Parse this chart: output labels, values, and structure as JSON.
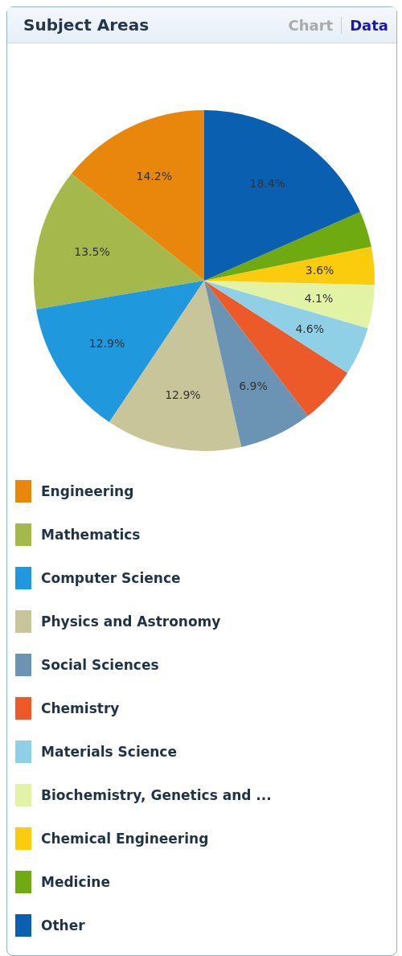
{
  "chart_data": {
    "type": "pie",
    "title": "Subject Areas",
    "annotations": [
      "Chart",
      "Data"
    ],
    "categories": [
      "Engineering",
      "Mathematics",
      "Computer Science",
      "Physics and Astronomy",
      "Social Sciences",
      "Chemistry",
      "Materials Science",
      "Biochemistry, Genetics and ...",
      "Chemical Engineering",
      "Medicine",
      "Other"
    ],
    "values": [
      14.2,
      13.5,
      12.9,
      12.9,
      6.9,
      5.5,
      4.6,
      4.1,
      3.6,
      3.4,
      18.4
    ],
    "value_labels": [
      "14.2%",
      "13.5%",
      "12.9%",
      "12.9%",
      "6.9%",
      null,
      "4.6%",
      "4.1%",
      "3.6%",
      null,
      "18.4%"
    ],
    "colors": [
      "#e8870b",
      "#a5b84b",
      "#1f98dd",
      "#c9c59a",
      "#6a93b4",
      "#ec5a2a",
      "#8fd0e6",
      "#e2f3a6",
      "#fbcb0d",
      "#6eaa10",
      "#0a5fb0"
    ],
    "legend": "bottom"
  }
}
